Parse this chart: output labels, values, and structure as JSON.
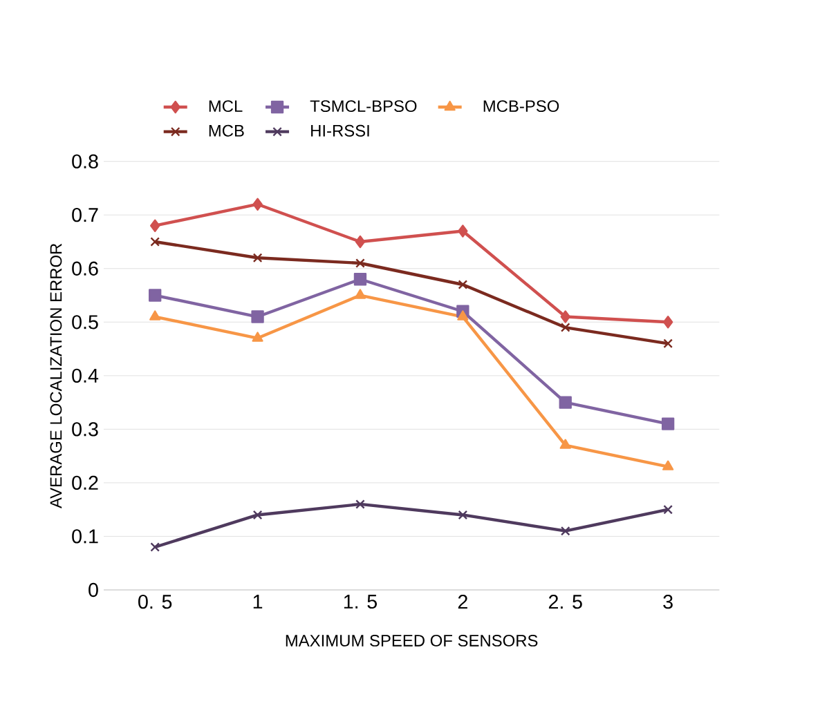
{
  "chart_data": {
    "type": "line",
    "xlabel": "MAXIMUM SPEED OF SENSORS",
    "ylabel": "AVERAGE LOCALIZATION ERROR",
    "categories": [
      "0. 5",
      "1",
      "1. 5",
      "2",
      "2. 5",
      "3"
    ],
    "ylim": [
      0,
      0.8
    ],
    "yticks": [
      0,
      0.1,
      0.2,
      0.3,
      0.4,
      0.5,
      0.6,
      0.7,
      0.8
    ],
    "grid": "y",
    "legend": "top",
    "series": [
      {
        "name": "MCL",
        "color": "#d0504f",
        "marker": "diamond",
        "values": [
          0.68,
          0.72,
          0.65,
          0.67,
          0.51,
          0.5
        ]
      },
      {
        "name": "TSMCL-BPSO",
        "color": "#8064a2",
        "marker": "square",
        "values": [
          0.55,
          0.51,
          0.58,
          0.52,
          0.35,
          0.31
        ]
      },
      {
        "name": "MCB-PSO",
        "color": "#f79646",
        "marker": "triangle",
        "values": [
          0.51,
          0.47,
          0.55,
          0.51,
          0.27,
          0.23
        ]
      },
      {
        "name": "MCB",
        "color": "#7b2a1f",
        "marker": "cross",
        "values": [
          0.65,
          0.62,
          0.61,
          0.57,
          0.49,
          0.46
        ]
      },
      {
        "name": "HI-RSSI",
        "color": "#4f3a5e",
        "marker": "cross",
        "values": [
          0.08,
          0.14,
          0.16,
          0.14,
          0.11,
          0.15
        ]
      }
    ]
  }
}
